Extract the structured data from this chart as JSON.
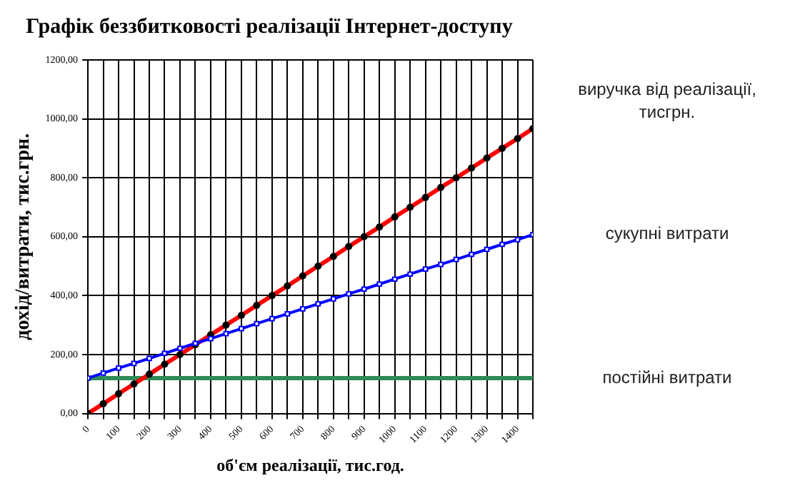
{
  "chart_data": {
    "type": "line",
    "title": "Графік беззбитковості реалізації Інтернет-доступу",
    "xlabel": "об'єм реалізації, тис.год.",
    "ylabel": "дохід/витрати, тис.грн.",
    "x": [
      0,
      50,
      100,
      150,
      200,
      250,
      300,
      350,
      400,
      450,
      500,
      550,
      600,
      650,
      700,
      750,
      800,
      850,
      900,
      950,
      1000,
      1050,
      1100,
      1150,
      1200,
      1250,
      1300,
      1350,
      1400,
      1450
    ],
    "xlim": [
      0,
      1450
    ],
    "xticks": [
      0,
      {
        "value": 50,
        "label": null
      },
      100,
      {
        "value": 150,
        "label": null
      },
      200,
      {
        "value": 250,
        "label": null
      },
      300,
      {
        "value": 350,
        "label": null
      },
      400,
      {
        "value": 450,
        "label": null
      },
      500,
      {
        "value": 550,
        "label": null
      },
      600,
      {
        "value": 650,
        "label": null
      },
      700,
      {
        "value": 750,
        "label": null
      },
      800,
      {
        "value": 850,
        "label": null
      },
      900,
      {
        "value": 950,
        "label": null
      },
      1000,
      {
        "value": 1050,
        "label": null
      },
      1100,
      {
        "value": 1150,
        "label": null
      },
      1200,
      {
        "value": 1250,
        "label": null
      },
      1300,
      {
        "value": 1350,
        "label": null
      },
      1400,
      {
        "value": 1450,
        "label": null
      }
    ],
    "ylim": [
      0,
      1200
    ],
    "yticks": [
      {
        "value": 0,
        "label": "0,00"
      },
      {
        "value": 200,
        "label": "200,00"
      },
      {
        "value": 400,
        "label": "400,00"
      },
      {
        "value": 600,
        "label": "600,00"
      },
      {
        "value": 800,
        "label": "800,00"
      },
      {
        "value": 1000,
        "label": "1000,00"
      },
      {
        "value": 1200,
        "label": "1200,00"
      }
    ],
    "grid": true,
    "legend": false,
    "series": [
      {
        "name": "виручка від реалізації, тисгрн.",
        "color": "#ff0000",
        "marker": "circle",
        "values": [
          0,
          33,
          67,
          100,
          133,
          167,
          200,
          233,
          267,
          300,
          333,
          367,
          400,
          433,
          467,
          500,
          533,
          567,
          600,
          633,
          667,
          700,
          733,
          767,
          800,
          833,
          867,
          900,
          933,
          967
        ]
      },
      {
        "name": "сукупні витрати",
        "color": "#0000ff",
        "marker": "square",
        "values": [
          120,
          137,
          154,
          170,
          187,
          204,
          221,
          238,
          254,
          271,
          288,
          305,
          322,
          338,
          355,
          372,
          389,
          406,
          422,
          439,
          456,
          473,
          490,
          506,
          523,
          540,
          557,
          574,
          590,
          607
        ]
      },
      {
        "name": "постійні витрати",
        "color": "#2e8b57",
        "marker": "none",
        "values": [
          120,
          120,
          120,
          120,
          120,
          120,
          120,
          120,
          120,
          120,
          120,
          120,
          120,
          120,
          120,
          120,
          120,
          120,
          120,
          120,
          120,
          120,
          120,
          120,
          120,
          120,
          120,
          120,
          120,
          120
        ]
      }
    ]
  }
}
